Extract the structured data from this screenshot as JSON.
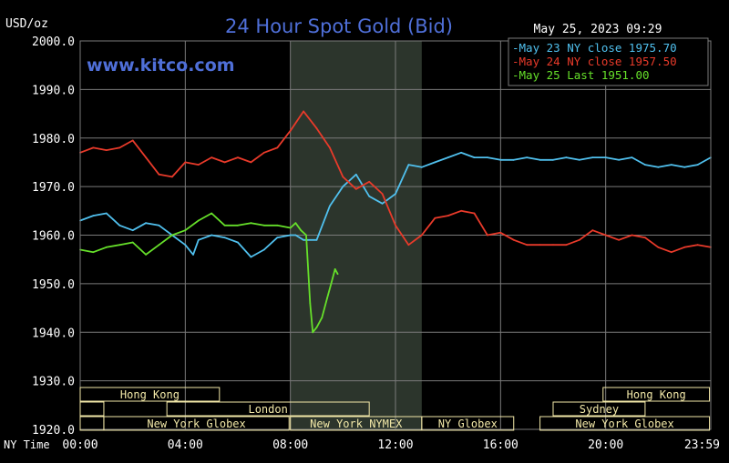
{
  "chart_data": {
    "type": "line",
    "title": "24 Hour Spot Gold (Bid)",
    "watermark": "www.kitco.com",
    "timestamp": "May 25, 2023 09:29",
    "ylabel": "USD/oz",
    "xlabel": "NY Time",
    "ylim": [
      1920,
      2000
    ],
    "xlim": [
      0,
      24
    ],
    "yticks": [
      "2000.0",
      "1990.0",
      "1980.0",
      "1970.0",
      "1960.0",
      "1950.0",
      "1940.0",
      "1930.0",
      "1920.0"
    ],
    "xticks": [
      "00:00",
      "04:00",
      "08:00",
      "12:00",
      "16:00",
      "20:00",
      "23:59"
    ],
    "grid": true,
    "legend_position": "top-right",
    "colors": {
      "background": "#000000",
      "grid": "#7a7a7a",
      "title": "#4f6fd8",
      "session_shade": "#2c352c",
      "market_box": "#f2e8a8"
    },
    "series": [
      {
        "name": "May 23 NY close 1975.70",
        "color": "#50c0ee",
        "x": [
          0,
          0.5,
          1,
          1.5,
          2,
          2.5,
          3,
          3.5,
          4,
          4.3,
          4.5,
          5,
          5.5,
          6,
          6.5,
          7,
          7.5,
          8,
          8.2,
          8.5,
          9,
          9.5,
          10,
          10.5,
          11,
          11.5,
          12,
          12.5,
          13,
          13.5,
          14,
          14.5,
          15,
          15.5,
          16,
          16.5,
          17,
          17.5,
          18,
          18.5,
          19,
          19.5,
          20,
          20.5,
          21,
          21.5,
          22,
          22.5,
          23,
          23.5,
          24
        ],
        "y": [
          1963,
          1964,
          1964.5,
          1962,
          1961,
          1962.5,
          1962,
          1960,
          1958,
          1956,
          1959,
          1960,
          1959.5,
          1958.5,
          1955.5,
          1957,
          1959.5,
          1960,
          1960,
          1959,
          1959,
          1966,
          1970,
          1972.5,
          1968,
          1966.5,
          1968.5,
          1974.5,
          1974,
          1975,
          1976,
          1977,
          1976,
          1976,
          1975.5,
          1975.5,
          1976,
          1975.5,
          1975.5,
          1976,
          1975.5,
          1976,
          1976,
          1975.5,
          1976,
          1974.5,
          1974,
          1974.5,
          1974,
          1974.5,
          1976
        ]
      },
      {
        "name": "May 24 NY close 1957.50",
        "color": "#e83a2a",
        "x": [
          0,
          0.5,
          1,
          1.5,
          2,
          2.5,
          3,
          3.5,
          4,
          4.5,
          5,
          5.5,
          6,
          6.5,
          7,
          7.5,
          8,
          8.5,
          9,
          9.5,
          10,
          10.5,
          11,
          11.5,
          12,
          12.5,
          13,
          13.5,
          14,
          14.5,
          15,
          15.5,
          16,
          16.5,
          17,
          17.5,
          18,
          18.5,
          19,
          19.5,
          20,
          20.5,
          21,
          21.5,
          22,
          22.5,
          23,
          23.5,
          24
        ],
        "y": [
          1977,
          1978,
          1977.5,
          1978,
          1979.5,
          1976,
          1972.5,
          1972,
          1975,
          1974.5,
          1976,
          1975,
          1976,
          1975,
          1977,
          1978,
          1981.5,
          1985.5,
          1982,
          1978,
          1972,
          1969.5,
          1971,
          1968.5,
          1962,
          1958,
          1960,
          1963.5,
          1964,
          1965,
          1964.5,
          1960,
          1960.5,
          1959,
          1958,
          1958,
          1958,
          1958,
          1959,
          1961,
          1960,
          1959,
          1960,
          1959.5,
          1957.5,
          1956.5,
          1957.5,
          1958,
          1957.5
        ]
      },
      {
        "name": "May 25 Last 1951.00",
        "color": "#66e02a",
        "x": [
          0,
          0.5,
          1,
          1.5,
          2,
          2.5,
          3,
          3.5,
          4,
          4.5,
          5,
          5.5,
          6,
          6.5,
          7,
          7.5,
          8,
          8.2,
          8.4,
          8.6,
          8.75,
          8.85,
          9.0,
          9.2,
          9.4,
          9.55,
          9.7,
          9.8
        ],
        "y": [
          1957,
          1956.5,
          1957.5,
          1958,
          1958.5,
          1956,
          1958,
          1960,
          1961,
          1963,
          1964.5,
          1962,
          1962,
          1962.5,
          1962,
          1962,
          1961.5,
          1962.5,
          1961,
          1960,
          1946,
          1940,
          1941,
          1943,
          1947,
          1950,
          1953,
          1952
        ]
      }
    ],
    "session_shade_hours": [
      8.0,
      13.0
    ],
    "markets": [
      {
        "name": "Hong Kong",
        "row": 0,
        "start": 0,
        "end": 5.3
      },
      {
        "name": "",
        "row": 1,
        "start": 0,
        "end": 0.9
      },
      {
        "name": "London",
        "row": 1,
        "start": 3.3,
        "end": 11.0
      },
      {
        "name": "",
        "row": 2,
        "start": 0,
        "end": 0.9
      },
      {
        "name": "New York Globex",
        "row": 2,
        "start": 0.9,
        "end": 7.95
      },
      {
        "name": "New York NYMEX",
        "row": 2,
        "start": 8.0,
        "end": 13.0
      },
      {
        "name": "NY Globex",
        "row": 2,
        "start": 13.0,
        "end": 16.5
      },
      {
        "name": "Hong Kong",
        "row": 0,
        "start": 19.9,
        "end": 23.95
      },
      {
        "name": "Sydney",
        "row": 1,
        "start": 18.0,
        "end": 21.5
      },
      {
        "name": "New York Globex",
        "row": 2,
        "start": 17.5,
        "end": 23.95
      }
    ]
  }
}
